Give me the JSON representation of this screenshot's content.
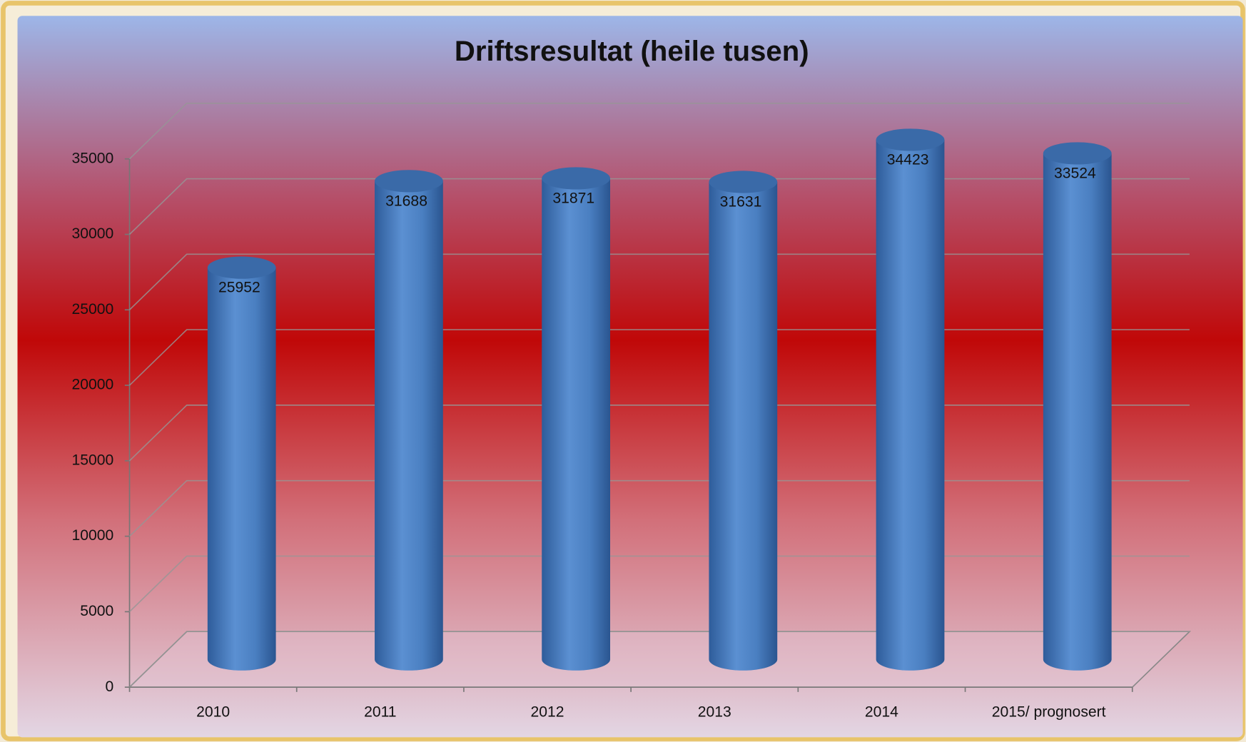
{
  "chart_data": {
    "type": "bar",
    "title": "Driftsresultat (heile tusen)",
    "categories": [
      "2010",
      "2011",
      "2012",
      "2013",
      "2014",
      "2015/ prognosert"
    ],
    "values": [
      25952,
      31688,
      31871,
      31631,
      34423,
      33524
    ],
    "color": "#4a7fc1",
    "ylim": [
      0,
      35000
    ],
    "yticks": [
      0,
      5000,
      10000,
      15000,
      20000,
      25000,
      30000,
      35000
    ],
    "grid": true
  }
}
